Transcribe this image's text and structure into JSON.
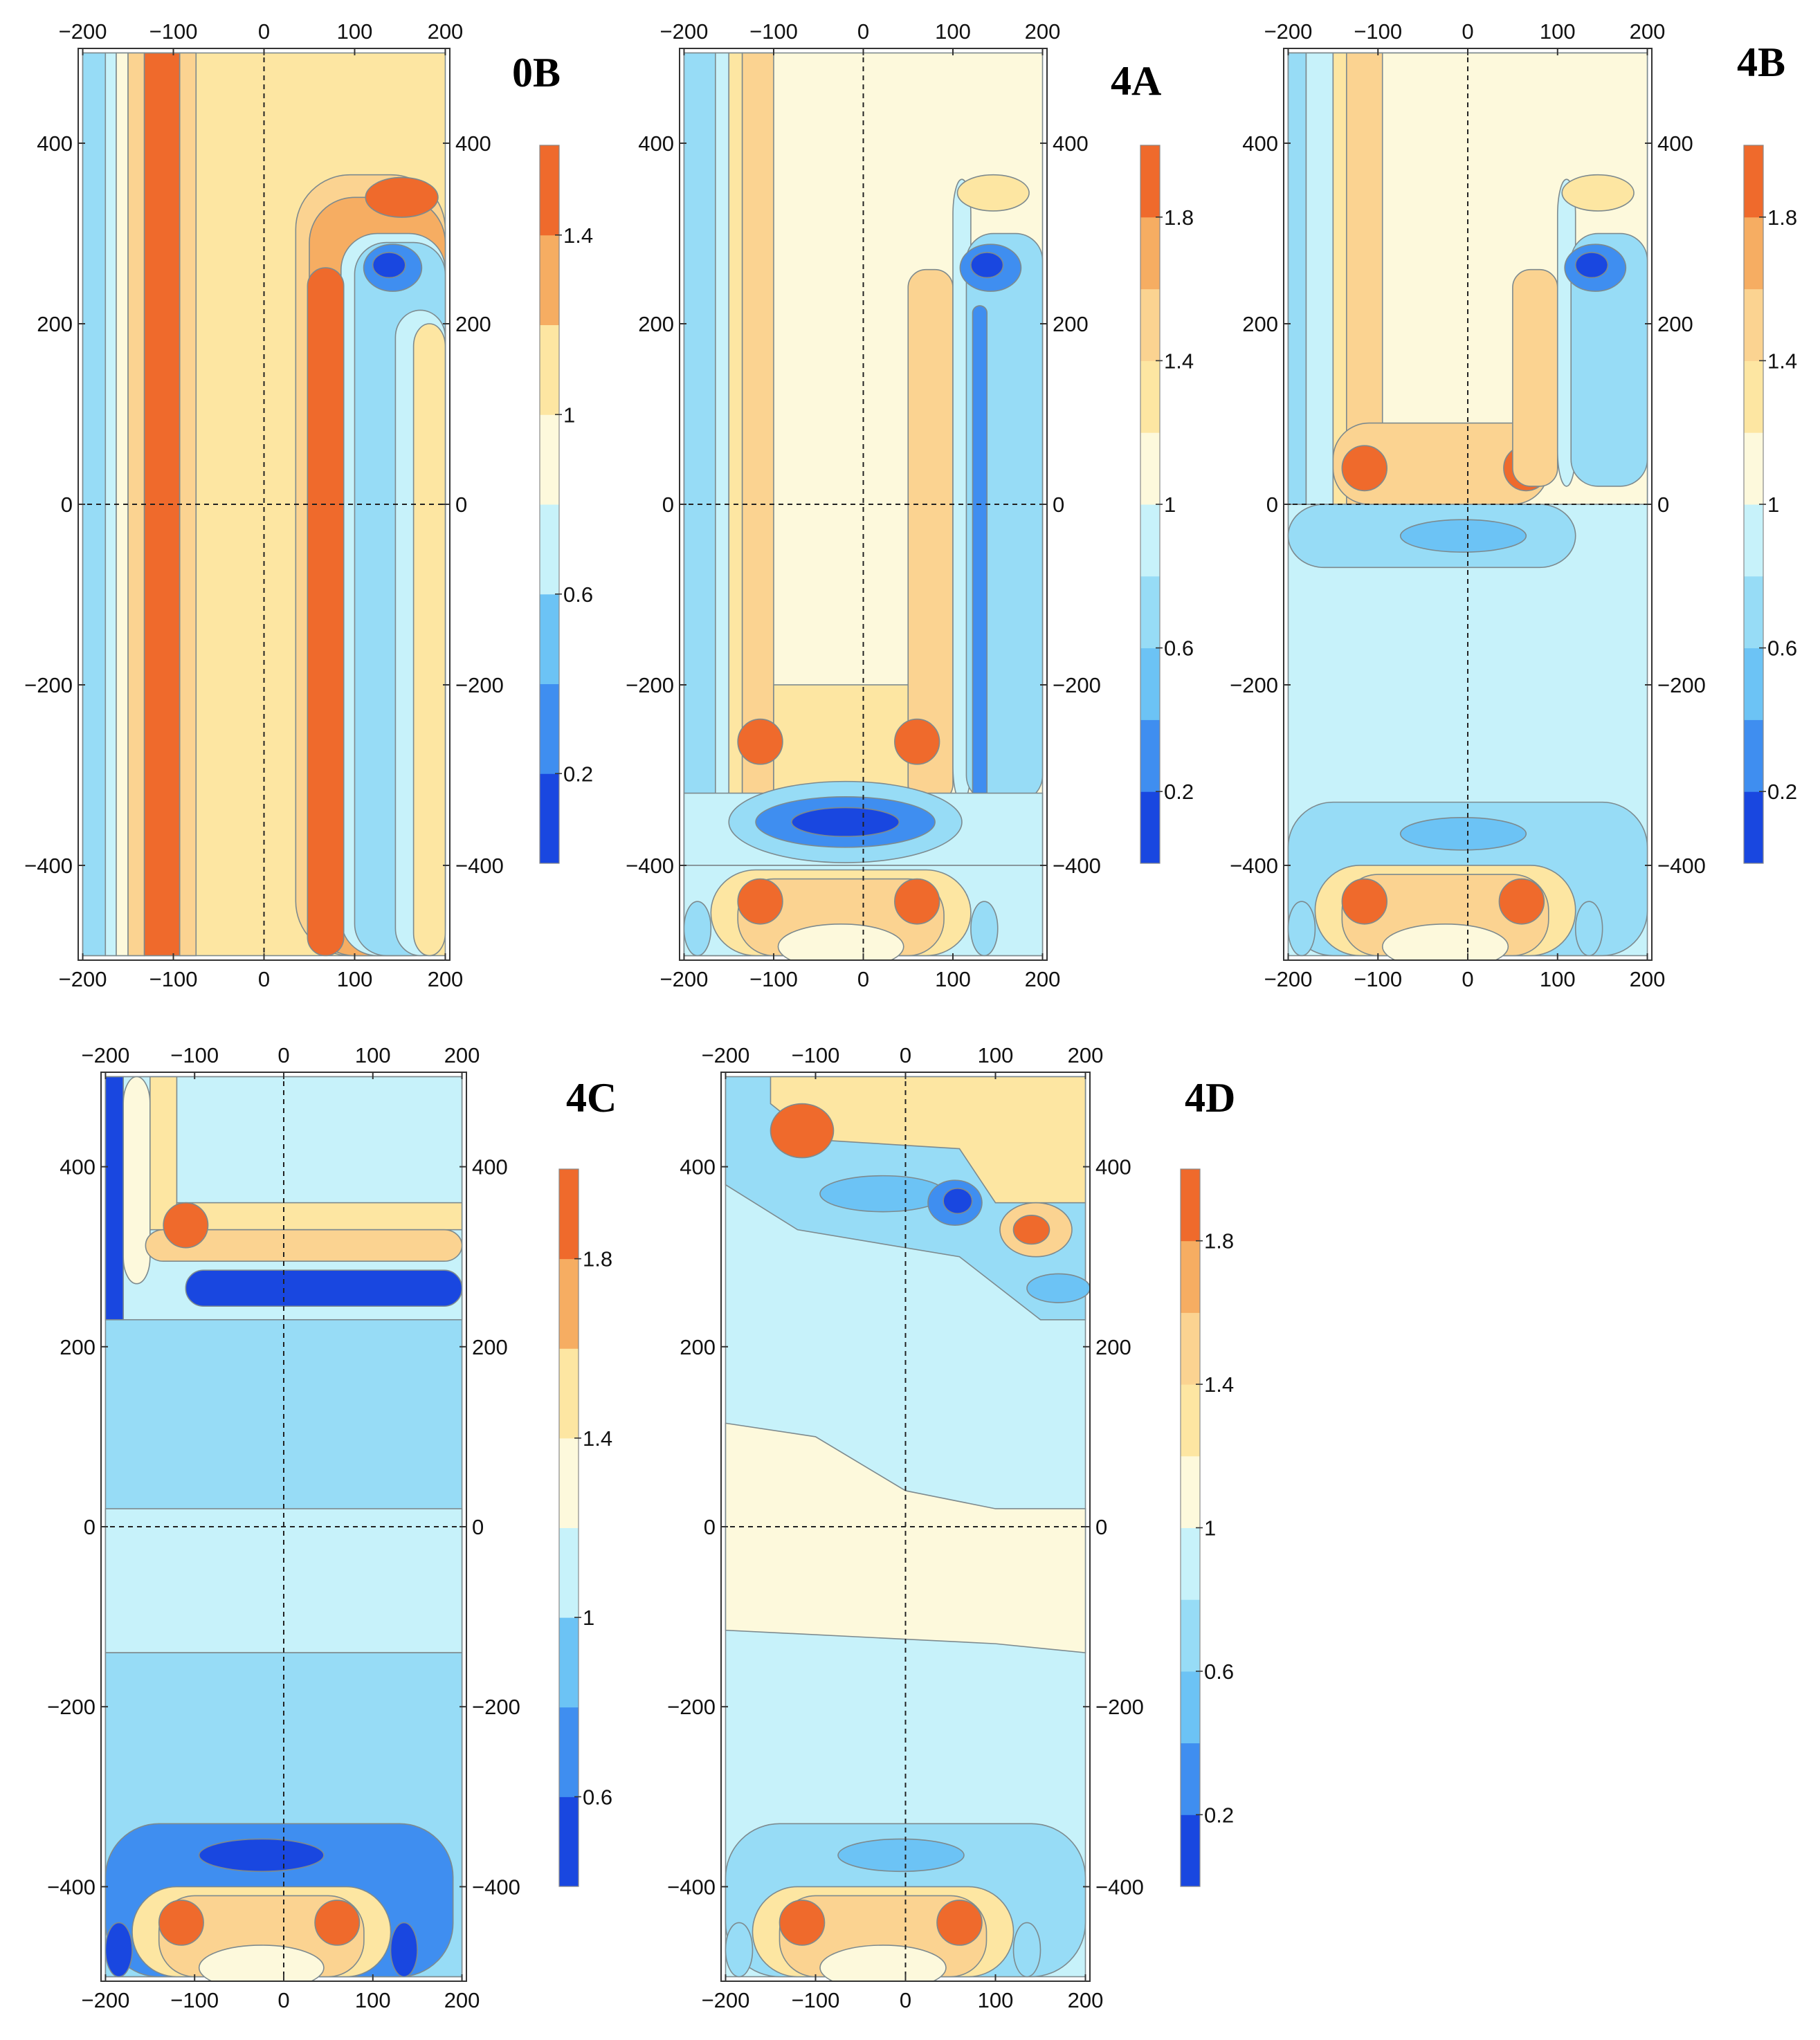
{
  "chart_data": {
    "type": "heatmap",
    "colors": {
      "c0": "#1947e0",
      "c1": "#3f8ef0",
      "c2": "#6cc3f5",
      "c3": "#97dcf6",
      "c4": "#c7f2fa",
      "c5": "#fdf9dc",
      "c6": "#fde6a2",
      "c7": "#fbd391",
      "c8": "#f6ad62",
      "c9": "#ef6a2c",
      "axis": "#333333",
      "contour": "#7d8a8e"
    },
    "panels": [
      {
        "label": "0B",
        "x_ticks": [
          "−200",
          "−100",
          "0",
          "100",
          "200"
        ],
        "x_tick_values": [
          -200,
          -100,
          0,
          100,
          200
        ],
        "y_ticks": [
          "400",
          "200",
          "0",
          "−200",
          "−400"
        ],
        "y_tick_values": [
          400,
          200,
          0,
          -200,
          -400
        ],
        "xlim": [
          -205,
          205
        ],
        "ylim": [
          -505,
          505
        ],
        "colorbar_ticks": [
          "1.4",
          "1",
          "0.6",
          "0.2"
        ],
        "colorbar_tick_values": [
          1.4,
          1.0,
          0.6,
          0.2
        ],
        "colorbar_range": [
          0.0,
          1.6
        ],
        "colorbar_levels": 8
      },
      {
        "label": "4A",
        "x_ticks": [
          "−200",
          "−100",
          "0",
          "100",
          "200"
        ],
        "x_tick_values": [
          -200,
          -100,
          0,
          100,
          200
        ],
        "y_ticks": [
          "400",
          "200",
          "0",
          "−200",
          "−400"
        ],
        "y_tick_values": [
          400,
          200,
          0,
          -200,
          -400
        ],
        "xlim": [
          -205,
          205
        ],
        "ylim": [
          -505,
          505
        ],
        "colorbar_ticks": [
          "1.8",
          "1.4",
          "1",
          "0.6",
          "0.2"
        ],
        "colorbar_tick_values": [
          1.8,
          1.4,
          1.0,
          0.6,
          0.2
        ],
        "colorbar_range": [
          0.0,
          2.0
        ],
        "colorbar_levels": 10
      },
      {
        "label": "4B",
        "x_ticks": [
          "−200",
          "−100",
          "0",
          "100",
          "200"
        ],
        "x_tick_values": [
          -200,
          -100,
          0,
          100,
          200
        ],
        "y_ticks": [
          "400",
          "200",
          "0",
          "−200",
          "−400"
        ],
        "y_tick_values": [
          400,
          200,
          0,
          -200,
          -400
        ],
        "xlim": [
          -205,
          205
        ],
        "ylim": [
          -505,
          505
        ],
        "colorbar_ticks": [
          "1.8",
          "1.4",
          "1",
          "0.6",
          "0.2"
        ],
        "colorbar_tick_values": [
          1.8,
          1.4,
          1.0,
          0.6,
          0.2
        ],
        "colorbar_range": [
          0.0,
          2.0
        ],
        "colorbar_levels": 10
      },
      {
        "label": "4C",
        "x_ticks": [
          "−200",
          "−100",
          "0",
          "100",
          "200"
        ],
        "x_tick_values": [
          -200,
          -100,
          0,
          100,
          200
        ],
        "y_ticks": [
          "400",
          "200",
          "0",
          "−200",
          "−400"
        ],
        "y_tick_values": [
          400,
          200,
          0,
          -200,
          -400
        ],
        "xlim": [
          -205,
          205
        ],
        "ylim": [
          -505,
          505
        ],
        "colorbar_ticks": [
          "1.8",
          "1.4",
          "1",
          "0.6"
        ],
        "colorbar_tick_values": [
          1.8,
          1.4,
          1.0,
          0.6
        ],
        "colorbar_range": [
          0.4,
          2.0
        ],
        "colorbar_levels": 8
      },
      {
        "label": "4D",
        "x_ticks": [
          "−200",
          "−100",
          "0",
          "100",
          "200"
        ],
        "x_tick_values": [
          -200,
          -100,
          0,
          100,
          200
        ],
        "y_ticks": [
          "400",
          "200",
          "0",
          "−200",
          "−400"
        ],
        "y_tick_values": [
          400,
          200,
          0,
          -200,
          -400
        ],
        "xlim": [
          -205,
          205
        ],
        "ylim": [
          -505,
          505
        ],
        "colorbar_ticks": [
          "1.8",
          "1.4",
          "1",
          "0.6",
          "0.2"
        ],
        "colorbar_tick_values": [
          1.8,
          1.4,
          1.0,
          0.6,
          0.2
        ],
        "colorbar_range": [
          0.0,
          2.0
        ],
        "colorbar_levels": 10
      }
    ]
  }
}
